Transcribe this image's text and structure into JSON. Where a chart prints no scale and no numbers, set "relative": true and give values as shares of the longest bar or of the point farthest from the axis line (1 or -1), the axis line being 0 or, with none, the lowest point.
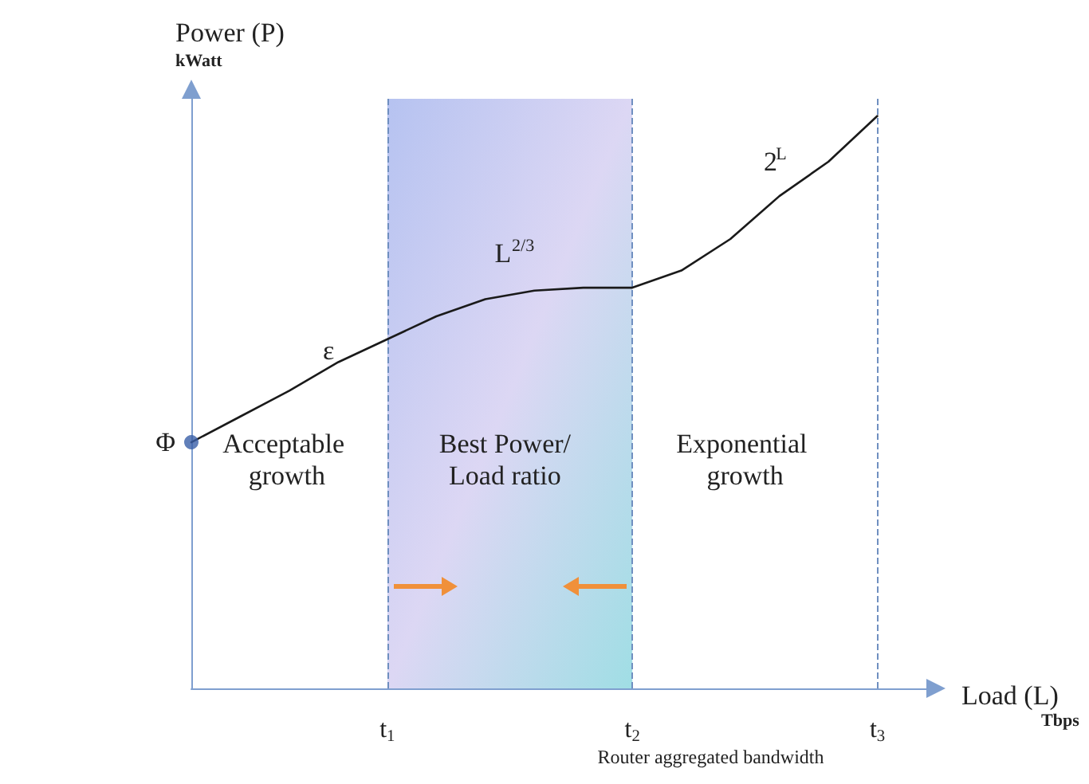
{
  "chart_data": {
    "type": "line",
    "relative": true,
    "xlabel": "Load (L)\nTbps",
    "ylabel": "Power (P)\nkWatt",
    "categories": [
      null,
      null,
      null,
      null,
      "t$_{1}$",
      null,
      null,
      null,
      null,
      "t$_{2}$",
      null,
      null,
      null,
      null,
      "t$_{3}$",
      null
    ],
    "series": [
      {
        "color": "#1a1a1a",
        "marker": "none",
        "values": [
          0.43,
          0.475,
          0.52,
          0.57,
          0.61,
          0.65,
          0.68,
          0.695,
          0.7,
          0.7,
          0.73,
          0.785,
          0.86,
          0.92,
          1,
          null
        ]
      },
      {
        "type": "scatter",
        "color": "#3a5fa8",
        "marker": "circle",
        "values": [
          0.43,
          null,
          null,
          null,
          null,
          null,
          null,
          null,
          null,
          null,
          null,
          null,
          null,
          null,
          null,
          null
        ]
      }
    ],
    "bands": [
      {
        "axis": "x",
        "from": "t$_{1}$",
        "to": "t$_{2}$",
        "color": "#a9b8ee"
      }
    ],
    "ref_lines": [
      {
        "axis": "x",
        "value": "t$_{1}$",
        "line_style": "dashed"
      },
      {
        "axis": "x",
        "value": "t$_{2}$",
        "line_style": "dashed"
      },
      {
        "axis": "x",
        "value": "t$_{3}$",
        "line_style": "dashed"
      }
    ],
    "annotations": [
      "Φ",
      "ε",
      "L$^{2/3}$",
      "2$^{L}$",
      "Acceptable growth",
      "Best Power/Load ratio",
      "Exponential growth",
      "Router aggregated bandwidth"
    ],
    "grid": false
  }
}
